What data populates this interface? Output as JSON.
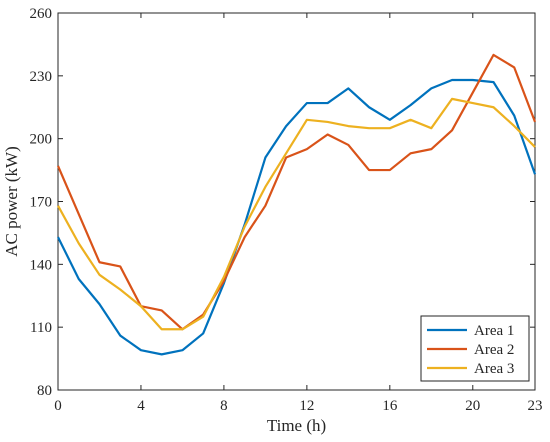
{
  "chart_data": {
    "type": "line",
    "xlabel": "Time (h)",
    "ylabel": "AC power (kW)",
    "xlim": [
      0,
      23
    ],
    "ylim": [
      80,
      260
    ],
    "xticks": [
      0,
      4,
      8,
      12,
      16,
      20,
      23
    ],
    "yticks": [
      80,
      110,
      140,
      170,
      200,
      230,
      260
    ],
    "grid": false,
    "legend_position": "bottom-right",
    "x": [
      0,
      1,
      2,
      3,
      4,
      5,
      6,
      7,
      8,
      9,
      10,
      11,
      12,
      13,
      14,
      15,
      16,
      17,
      18,
      19,
      20,
      21,
      22,
      23
    ],
    "series": [
      {
        "name": "Area 1",
        "color": "#0072BD",
        "values": [
          153,
          133,
          121,
          106,
          99,
          97,
          99,
          107,
          131,
          159,
          191,
          206,
          217,
          217,
          224,
          215,
          209,
          216,
          224,
          228,
          228,
          227,
          211,
          183
        ]
      },
      {
        "name": "Area 2",
        "color": "#D95319",
        "values": [
          187,
          164,
          141,
          139,
          120,
          118,
          109,
          116,
          132,
          153,
          168,
          191,
          195,
          202,
          197,
          185,
          185,
          193,
          195,
          204,
          222,
          240,
          234,
          208
        ]
      },
      {
        "name": "Area 3",
        "color": "#EDB120",
        "values": [
          168,
          150,
          135,
          128,
          120,
          109,
          109,
          115,
          134,
          158,
          177,
          193,
          209,
          208,
          206,
          205,
          205,
          209,
          205,
          219,
          217,
          215,
          206,
          196
        ]
      }
    ]
  }
}
